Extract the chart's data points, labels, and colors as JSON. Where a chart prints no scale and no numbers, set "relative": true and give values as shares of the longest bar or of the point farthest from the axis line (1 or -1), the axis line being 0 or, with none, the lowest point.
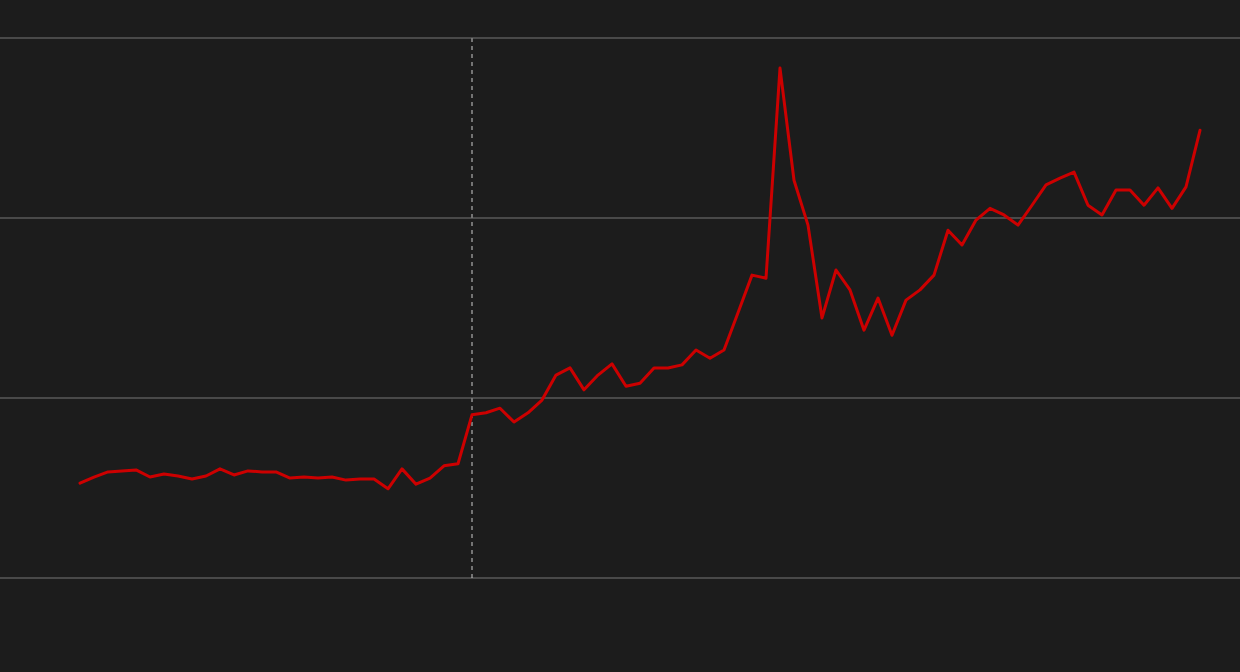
{
  "chart_data": {
    "type": "line",
    "relative": true,
    "marker": "none",
    "line_style": "solid",
    "categories": [
      null,
      null,
      null,
      null,
      null,
      null,
      null,
      null,
      null,
      null,
      null,
      null,
      null,
      null,
      null,
      null,
      null,
      null,
      null,
      null,
      null,
      null,
      null,
      null,
      null,
      null,
      null,
      null,
      null,
      null,
      null,
      null,
      null,
      null,
      null,
      null,
      null,
      null,
      null,
      null,
      null,
      null,
      null,
      null,
      null,
      null,
      null,
      null,
      null,
      null,
      null,
      null,
      null,
      null,
      null,
      null,
      null,
      null,
      null,
      null,
      null,
      null,
      null,
      null,
      null,
      null,
      null,
      null,
      null,
      null,
      null,
      null,
      null,
      null,
      null,
      null,
      null,
      null,
      null,
      null,
      null
    ],
    "series": [
      {
        "color": "#cc0000",
        "values": [
          0.186,
          0.198,
          0.208,
          0.21,
          0.212,
          0.198,
          0.204,
          0.2,
          0.194,
          0.2,
          0.214,
          0.202,
          0.21,
          0.208,
          0.208,
          0.196,
          0.198,
          0.196,
          0.198,
          0.192,
          0.194,
          0.194,
          0.175,
          0.214,
          0.184,
          0.196,
          0.22,
          0.224,
          0.32,
          0.324,
          0.333,
          0.306,
          0.324,
          0.349,
          0.398,
          0.412,
          0.369,
          0.398,
          0.42,
          0.376,
          0.382,
          0.412,
          0.412,
          0.418,
          0.447,
          0.431,
          0.447,
          0.52,
          0.594,
          0.588,
          1,
          0.78,
          0.692,
          0.51,
          0.604,
          0.565,
          0.486,
          0.549,
          0.476,
          0.545,
          0.565,
          0.594,
          0.682,
          0.653,
          0.702,
          0.725,
          0.712,
          0.692,
          0.731,
          0.771,
          0.784,
          0.796,
          0.731,
          0.712,
          0.761,
          0.761,
          0.731,
          0.765,
          0.725,
          0.767,
          0.878
        ]
      }
    ],
    "ref_lines": [
      {
        "axis": "y",
        "value": 0.353,
        "color": "#777777",
        "line_style": "solid"
      },
      {
        "axis": "y",
        "value": 0.706,
        "color": "#777777",
        "line_style": "solid"
      },
      {
        "axis": "y",
        "value": 1.059,
        "color": "#777777",
        "line_style": "solid"
      }
    ]
  }
}
